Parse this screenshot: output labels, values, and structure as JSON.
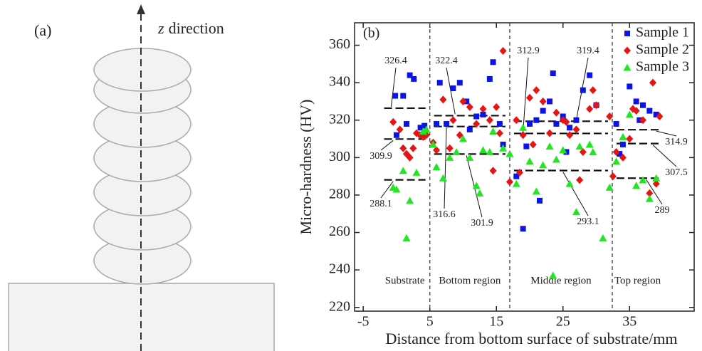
{
  "diagram": {
    "panel_label": "(a)",
    "axis_symbol": "z",
    "axis_text": "direction"
  },
  "chart_data": {
    "type": "scatter",
    "panel_label": "(b)",
    "x_label": "Distance from bottom surface of substrate/mm",
    "y_label": "Micro-hardness (HV)",
    "xlim": [
      -6.3,
      44.7
    ],
    "ylim": [
      218,
      372
    ],
    "xticks": [
      -5,
      5,
      15,
      25,
      35
    ],
    "yticks": [
      220,
      240,
      260,
      280,
      300,
      320,
      340,
      360
    ],
    "dividers": [
      5,
      17,
      32.4
    ],
    "regions": [
      {
        "label": "Substrate",
        "x": [
          -2.5,
          5
        ],
        "means": [
          326.4,
          309.9,
          288.1
        ]
      },
      {
        "label": "Bottom region",
        "x": [
          5,
          17
        ],
        "means": [
          322.4,
          316.6,
          301.9
        ]
      },
      {
        "label": "Middle region",
        "x": [
          17,
          32.4
        ],
        "means": [
          319.4,
          312.9,
          293.1
        ]
      },
      {
        "label": "Top region",
        "x": [
          32.4,
          40
        ],
        "means": [
          314.9,
          307.5,
          289.0
        ]
      }
    ],
    "series": [
      {
        "name": "Sample 1",
        "color": "#0a14e6",
        "marker": "square",
        "x": [
          -0.2,
          1.0,
          2.0,
          2.6,
          1.5,
          3.6,
          4.2,
          0,
          6.5,
          7.5,
          8.5,
          9.5,
          10.5,
          12,
          13,
          14,
          14.5,
          15.5,
          16.0,
          6,
          11,
          18,
          19,
          20,
          21,
          21.5,
          22,
          23,
          23.5,
          24,
          25,
          26,
          27,
          28,
          29,
          30,
          19.5,
          25.5,
          33,
          34,
          35,
          36,
          37,
          38,
          39,
          33.5,
          36.5
        ],
        "values": [
          333,
          333,
          344,
          342,
          318,
          316,
          317,
          312,
          340,
          318,
          337,
          340,
          330,
          322,
          323,
          342,
          351,
          318,
          307,
          318,
          315,
          290,
          262,
          318,
          320,
          277,
          325,
          330,
          345,
          318,
          322,
          316,
          320,
          336,
          344,
          328,
          306,
          303,
          318,
          307,
          338,
          330,
          328,
          325,
          323,
          302,
          320
        ]
      },
      {
        "name": "Sample 2",
        "color": "#e61414",
        "marker": "diamond",
        "x": [
          -0.5,
          0.5,
          1,
          1.5,
          2,
          2.5,
          3,
          3.5,
          4,
          4.5,
          5.5,
          6,
          7,
          8,
          8.5,
          9.5,
          10,
          11,
          12,
          13,
          14,
          14.5,
          15,
          16,
          15.5,
          17,
          18,
          18.5,
          19,
          20,
          20.5,
          21,
          22,
          23,
          24,
          25,
          25.5,
          26,
          27,
          27.5,
          28,
          29,
          29.5,
          30,
          32,
          32.5,
          33,
          34,
          35,
          35.5,
          36,
          37,
          38,
          38.5,
          39,
          39.5
        ],
        "values": [
          319,
          315,
          305,
          302,
          300,
          305,
          313,
          312,
          311,
          312,
          308,
          304,
          331,
          305,
          320,
          312,
          330,
          327,
          318,
          326,
          320,
          293,
          327,
          357,
          313,
          287,
          320,
          292,
          312,
          332,
          307,
          336,
          330,
          313,
          324,
          320,
          319,
          312,
          315,
          288,
          303,
          326,
          336,
          328,
          322,
          290,
          303,
          300,
          310,
          326,
          325,
          320,
          281,
          340,
          286,
          322
        ]
      },
      {
        "name": "Sample 3",
        "color": "#22e622",
        "marker": "triangle",
        "x": [
          -0.5,
          0,
          1,
          1.5,
          2,
          3,
          4,
          4.5,
          5.5,
          6,
          7,
          8,
          9,
          10,
          11,
          12,
          12.5,
          13,
          14,
          14.5,
          16,
          17,
          18,
          19,
          20,
          21,
          22,
          23,
          23.5,
          24,
          25,
          26,
          27,
          27.5,
          29,
          29.5,
          31,
          32,
          33,
          34,
          35,
          36,
          37,
          38,
          39
        ],
        "values": [
          284,
          283,
          293,
          257,
          277,
          292,
          314,
          315,
          307,
          295,
          289,
          300,
          303,
          310,
          300,
          285,
          281,
          304,
          303,
          314,
          305,
          302,
          286,
          316,
          298,
          282,
          296,
          306,
          237,
          299,
          304,
          286,
          271,
          306,
          307,
          303,
          257,
          284,
          298,
          311,
          323,
          285,
          288,
          278,
          289
        ]
      }
    ]
  }
}
